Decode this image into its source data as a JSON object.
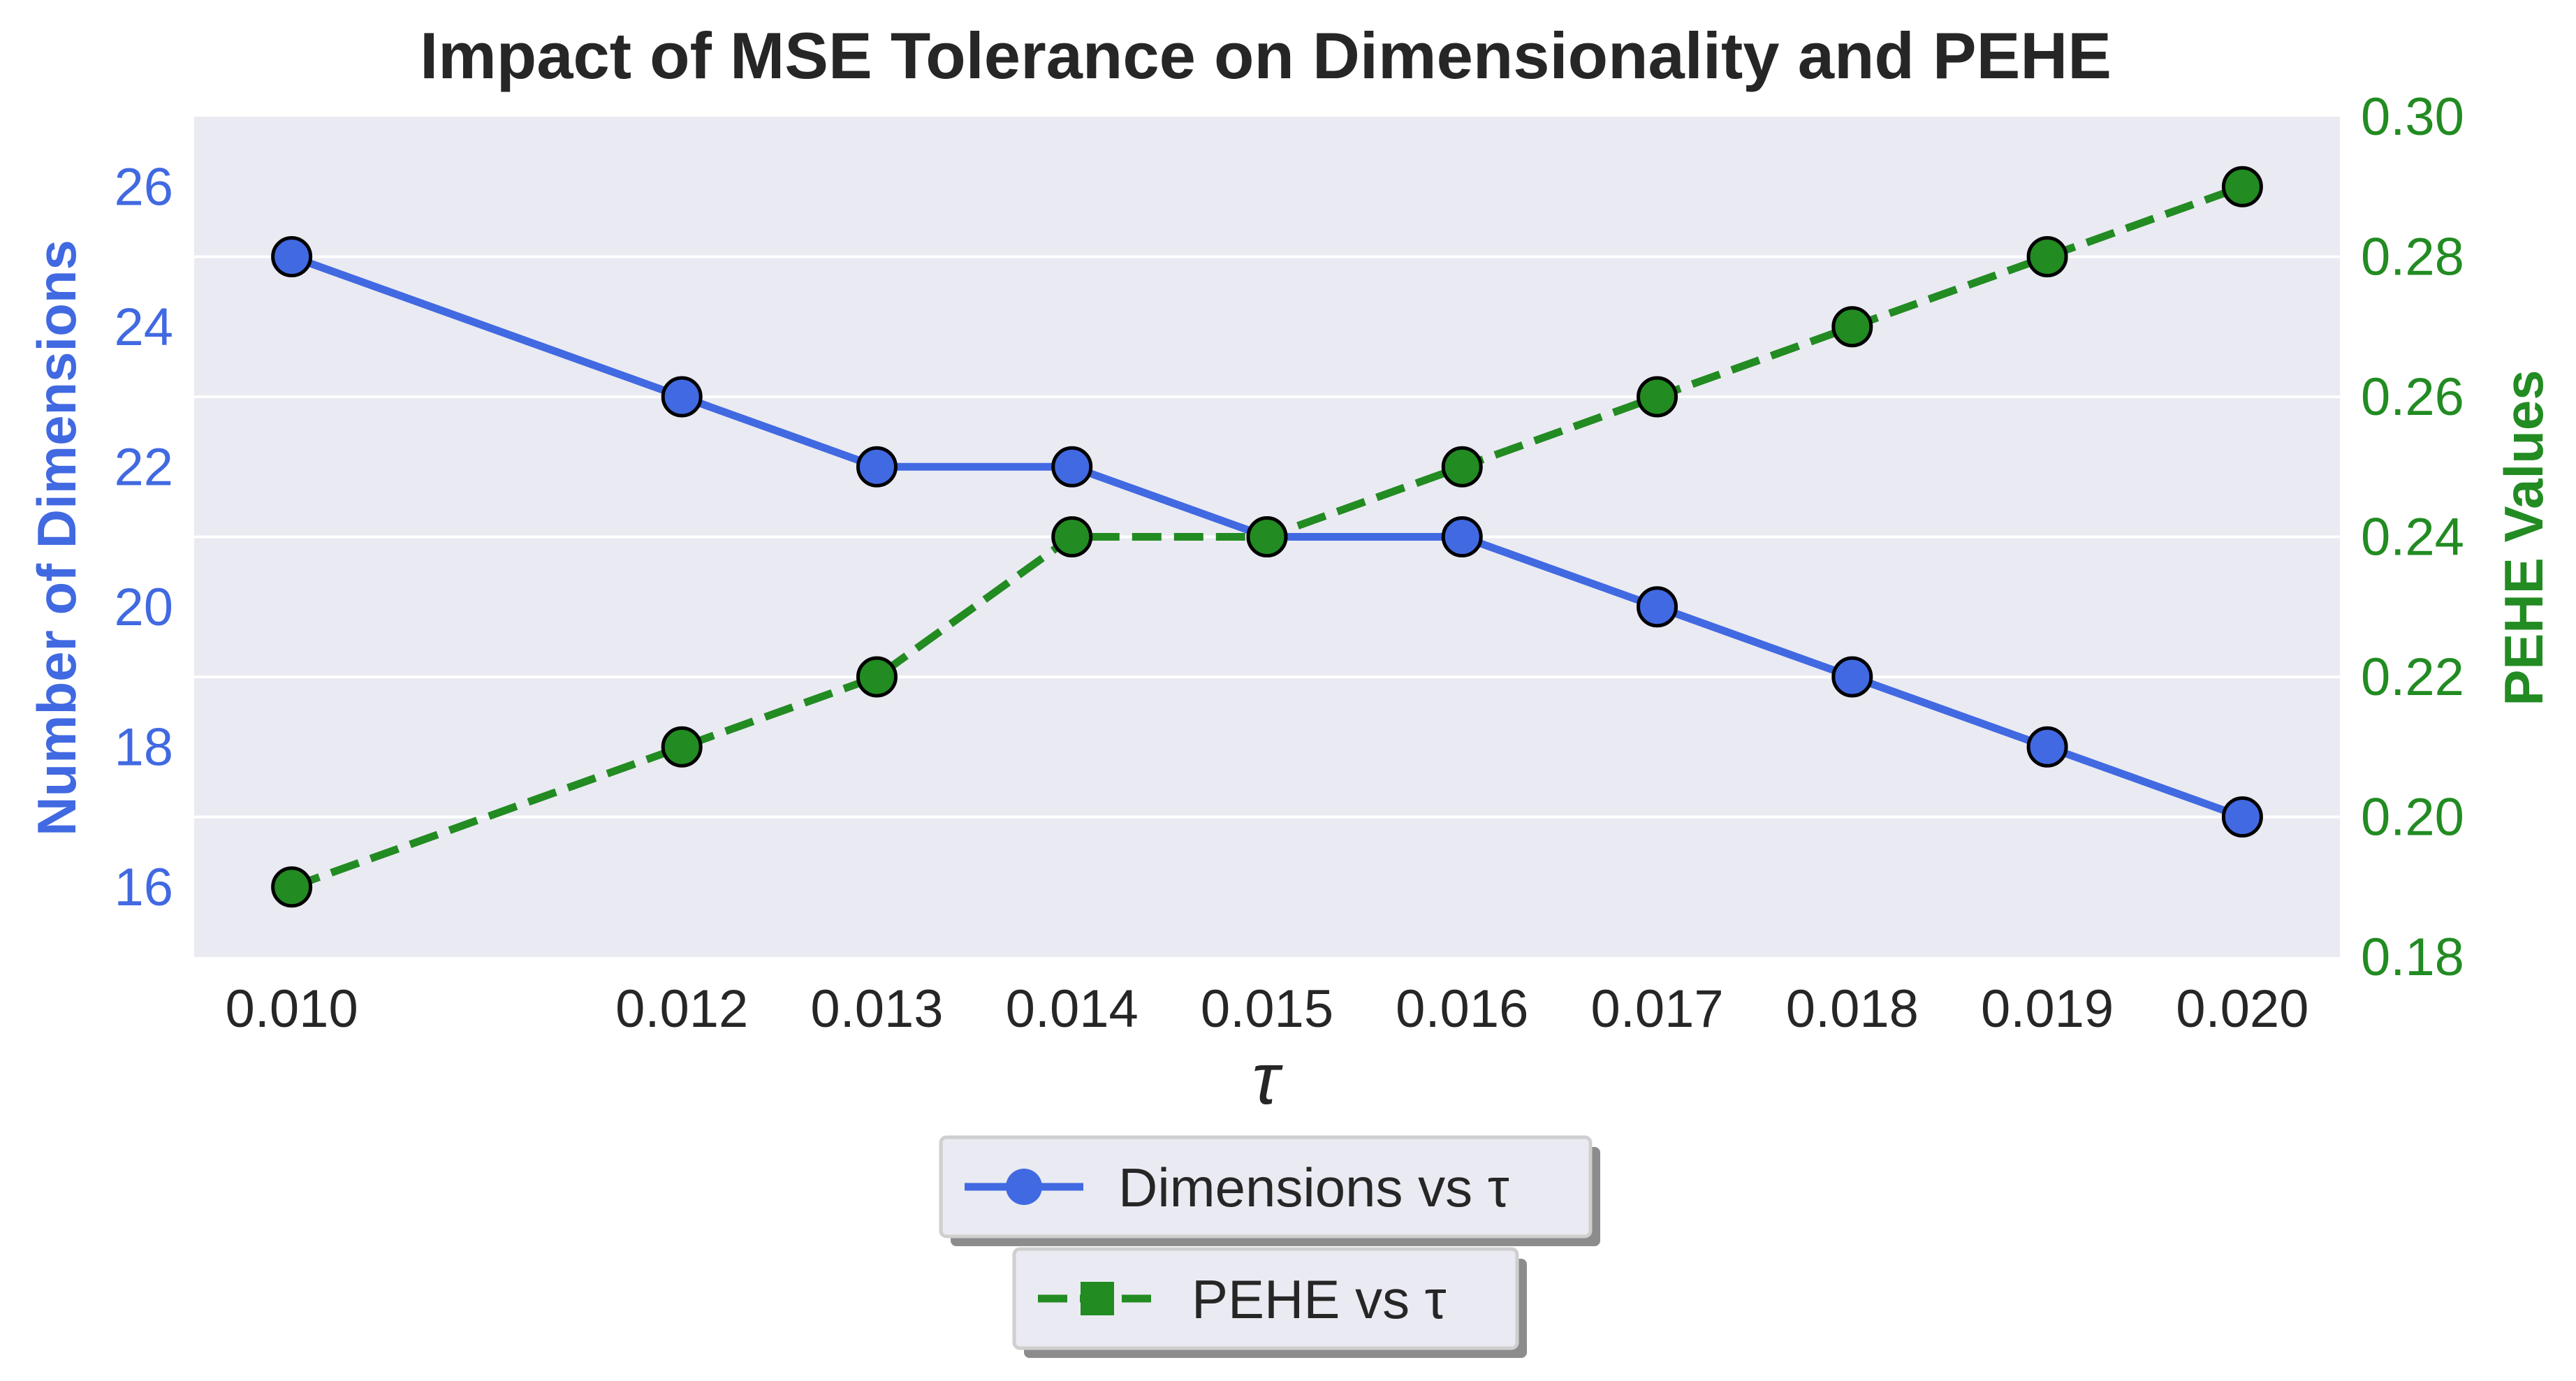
{
  "chart_data": {
    "type": "line",
    "title": "Impact of MSE Tolerance on Dimensionality and PEHE",
    "xlabel": "τ",
    "x": [
      0.01,
      0.012,
      0.013,
      0.014,
      0.015,
      0.016,
      0.017,
      0.018,
      0.019,
      0.02
    ],
    "x_tick_labels": [
      "0.010",
      "0.012",
      "0.013",
      "0.014",
      "0.015",
      "0.016",
      "0.017",
      "0.018",
      "0.019",
      "0.020"
    ],
    "xlim": [
      0.0095,
      0.0205
    ],
    "y_left": {
      "label": "Number of Dimensions",
      "ylim": [
        15,
        27
      ],
      "ticks": [
        16,
        18,
        20,
        22,
        24,
        26
      ],
      "tick_labels": [
        "16",
        "18",
        "20",
        "22",
        "24",
        "26"
      ],
      "color": "#4169E1"
    },
    "y_right": {
      "label": "PEHE Values",
      "ylim": [
        0.18,
        0.3
      ],
      "ticks": [
        0.18,
        0.2,
        0.22,
        0.24,
        0.26,
        0.28,
        0.3
      ],
      "tick_labels": [
        "0.18",
        "0.20",
        "0.22",
        "0.24",
        "0.26",
        "0.28",
        "0.30"
      ],
      "color": "#228B22"
    },
    "series": [
      {
        "name": "Dimensions vs τ",
        "axis": "left",
        "values": [
          25,
          23,
          22,
          22,
          21,
          21,
          20,
          19,
          18,
          17
        ],
        "color": "#4169E1",
        "line_style": "solid",
        "marker": "circle"
      },
      {
        "name": "PEHE vs τ",
        "axis": "right",
        "values": [
          0.19,
          0.21,
          0.22,
          0.24,
          0.24,
          0.25,
          0.26,
          0.27,
          0.28,
          0.29
        ],
        "color": "#228B22",
        "line_style": "dashed",
        "marker": "square"
      }
    ],
    "grid": true,
    "plot_background": "#EAEAF2",
    "legend_placement": "bottom-center"
  }
}
